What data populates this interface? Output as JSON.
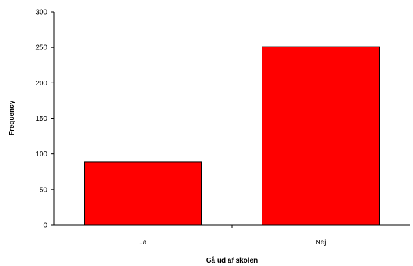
{
  "chart_data": {
    "type": "bar",
    "categories": [
      "Ja",
      "Nej"
    ],
    "values": [
      89,
      251
    ],
    "title": "",
    "xlabel": "Gå ud af skolen",
    "ylabel": "Frequency",
    "ylim": [
      0,
      300
    ],
    "yticks": [
      0,
      50,
      100,
      150,
      200,
      250,
      300
    ],
    "bar_color": "#ff0000",
    "bar_edge_color": "#000000",
    "grid": false,
    "legend": "none"
  }
}
